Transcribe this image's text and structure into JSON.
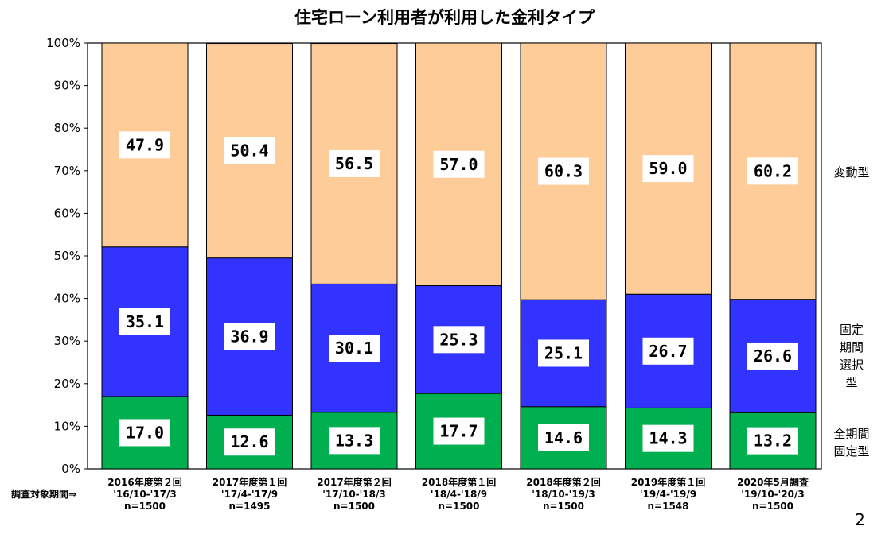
{
  "page": {
    "number": "2"
  },
  "chart_data": {
    "type": "bar",
    "stacked": true,
    "title": "住宅ローン利用者が利用した金利タイプ",
    "ylim": [
      0,
      100
    ],
    "yticks": [
      "0%",
      "10%",
      "20%",
      "30%",
      "40%",
      "50%",
      "60%",
      "70%",
      "80%",
      "90%",
      "100%"
    ],
    "survey_period_prefix": "調査対象期間⇒",
    "categories": [
      [
        "2016年度第２回",
        "'16/10-'17/3",
        "n=1500"
      ],
      [
        "2017年度第１回",
        "'17/4-'17/9",
        "n=1495"
      ],
      [
        "2017年度第２回",
        "'17/10-'18/3",
        "n=1500"
      ],
      [
        "2018年度第１回",
        "'18/4-'18/9",
        "n=1500"
      ],
      [
        "2018年度第２回",
        "'18/10-'19/3",
        "n=1500"
      ],
      [
        "2019年度第１回",
        "'19/4-'19/9",
        "n=1548"
      ],
      [
        "2020年5月調査",
        "'19/10-'20/3",
        "n=1500"
      ]
    ],
    "series": [
      {
        "name": "全期間固定型",
        "label_lines": [
          "全期間",
          "固定型"
        ],
        "color": "#00b050",
        "values": [
          17.0,
          12.6,
          13.3,
          17.7,
          14.6,
          14.3,
          13.2
        ],
        "labels": [
          "17.0",
          "12.6",
          "13.3",
          "17.7",
          "14.6",
          "14.3",
          "13.2"
        ]
      },
      {
        "name": "固定期間選択型",
        "label_lines": [
          "固定",
          "期間",
          "選択",
          "型"
        ],
        "color": "#3333ff",
        "values": [
          35.1,
          36.9,
          30.1,
          25.3,
          25.1,
          26.7,
          26.6
        ],
        "labels": [
          "35.1",
          "36.9",
          "30.1",
          "25.3",
          "25.1",
          "26.7",
          "26.6"
        ]
      },
      {
        "name": "変動型",
        "label_lines": [
          "変動型"
        ],
        "color": "#fecc99",
        "values": [
          47.9,
          50.4,
          56.5,
          57.0,
          60.3,
          59.0,
          60.2
        ],
        "labels": [
          "47.9",
          "50.4",
          "56.5",
          "57.0",
          "60.3",
          "59.0",
          "60.2"
        ]
      }
    ],
    "grid": false,
    "legend": "right"
  }
}
